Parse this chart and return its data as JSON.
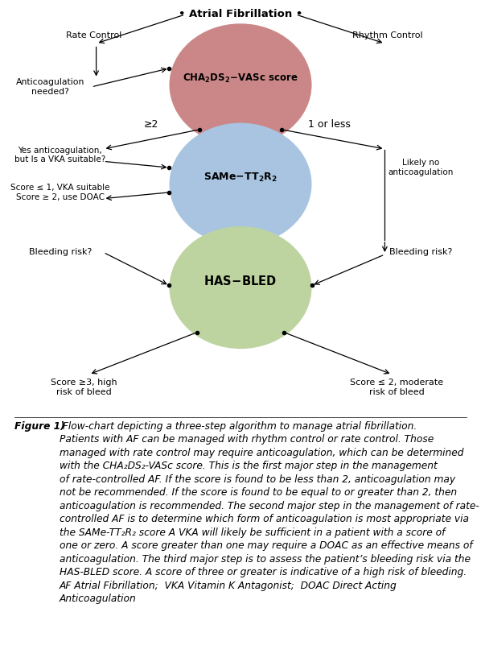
{
  "title": "Atrial Fibrillation",
  "circle1_label": "CHA₂DS₂-VASc score",
  "circle2_label": "SAMe-TT₂R₂",
  "circle3_label": "HAS-BLED",
  "circle1_color": "#cb8787",
  "circle2_color": "#a8c4e0",
  "circle3_color": "#bdd4a0",
  "arrow_color": "#d4c8a0",
  "c1x": 0.5,
  "c1y": 0.795,
  "c2x": 0.5,
  "c2y": 0.555,
  "c3x": 0.5,
  "c3y": 0.305,
  "cr": 0.148,
  "bg_color": "#ffffff",
  "caption_bold": "Figure 1)",
  "caption_body": " Flow-chart depicting a three-step algorithm to manage atrial fibrillation. Patients with AF can be managed with rhythm control or rate control. Those managed with rate control may require anticoagulation, which can be determined with the CHA₂DS₂-VASc score. This is the first major step in the management of rate-controlled AF. If the score is found to be less than 2, anticoagulation may not be recommended. If the score is found to be equal to or greater than 2, then anticoagulation is recommended. The second major step in the management of rate-controlled AF is to determine which form of anticoagulation is most appropriate via the SAMe-TT₂R₂ score A VKA will likely be sufficient in a patient with a score of one or zero. A score greater than one may require a DOAC as an effective means of anticoagulation. The third major step is to assess the patient’s bleeding risk via the HAS-BLED score. A score of three or greater is indicative of a high risk of bleeding.\nAF Atrial Fibrillation;  VKA Vitamin K Antagonist;  DOAC Direct Acting Anticoagulation"
}
